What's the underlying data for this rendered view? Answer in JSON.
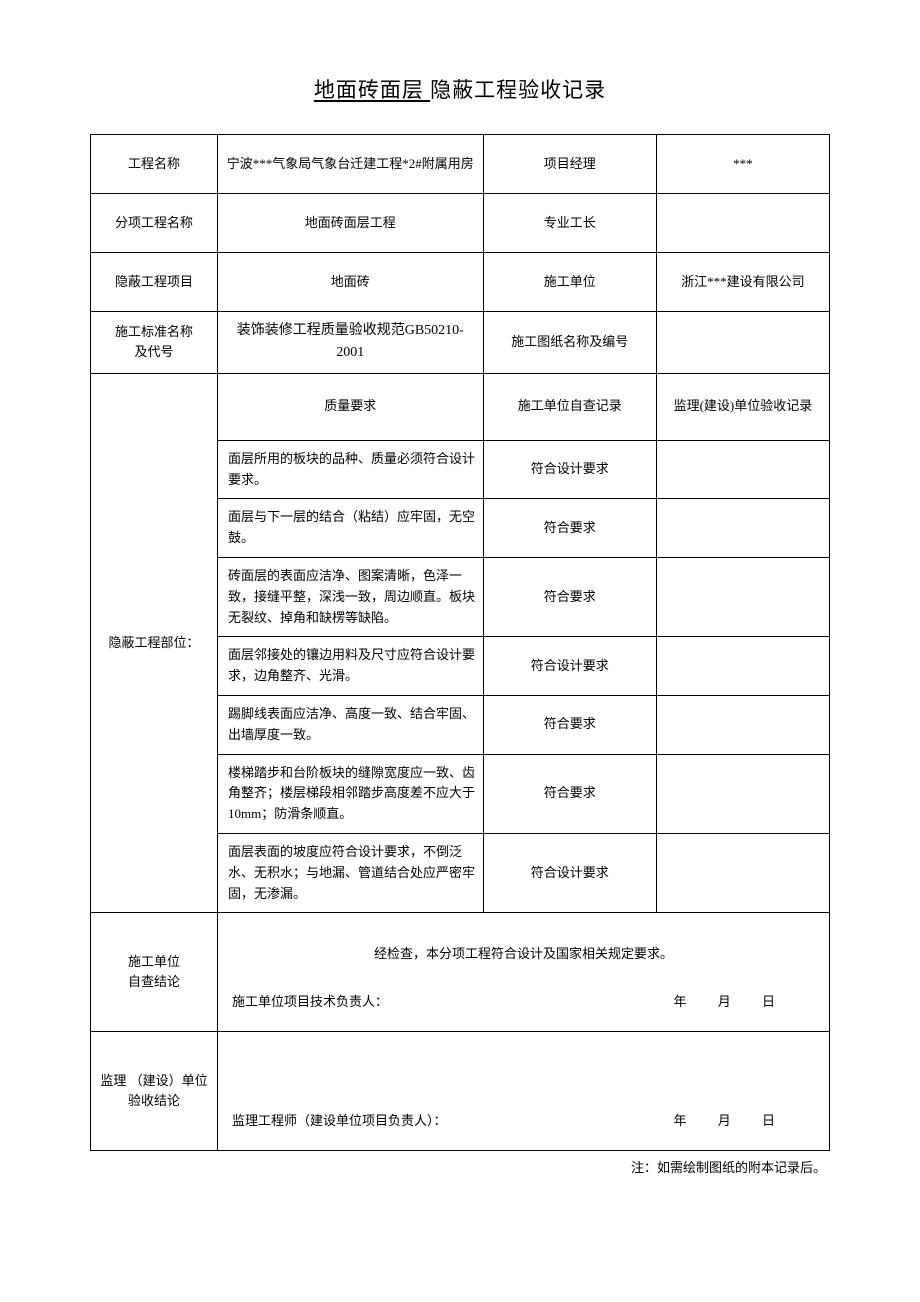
{
  "title": {
    "underlined": " 地面砖面层 ",
    "rest": "隐蔽工程验收记录"
  },
  "header": {
    "labels": {
      "project_name": "工程名称",
      "pm": "项目经理",
      "sub_project": "分项工程名称",
      "foreman": "专业工长",
      "hidden_item": "隐蔽工程项目",
      "contractor": "施工单位",
      "standard": "施工标准名称\n及代号",
      "drawing": "施工图纸名称及编号"
    },
    "values": {
      "project_name": "宁波***气象局气象台迁建工程*2#附属用房",
      "pm": "***",
      "sub_project": "地面砖面层工程",
      "foreman": "",
      "hidden_item": "地面砖",
      "contractor": "浙江***建设有限公司",
      "standard": "装饰装修工程质量验收规范GB50210-2001",
      "drawing": ""
    }
  },
  "body": {
    "section_label": "隐蔽工程部位：",
    "columns": {
      "req": "质量要求",
      "self_check": "施工单位自查记录",
      "super_check": "监理(建设)单位验收记录"
    },
    "rows": [
      {
        "req": "面层所用的板块的品种、质量必须符合设计要求。",
        "self": "符合设计要求",
        "super": ""
      },
      {
        "req": "面层与下一层的结合（粘结）应牢固，无空鼓。",
        "self": "符合要求",
        "super": ""
      },
      {
        "req": "砖面层的表面应洁净、图案清晰，色泽一致，接缝平整，深浅一致，周边顺直。板块无裂纹、掉角和缺楞等缺陷。",
        "self": "符合要求",
        "super": ""
      },
      {
        "req": "面层邻接处的镶边用料及尺寸应符合设计要求，边角整齐、光滑。",
        "self": "符合设计要求",
        "super": ""
      },
      {
        "req": "踢脚线表面应洁净、高度一致、结合牢固、出墙厚度一致。",
        "self": "符合要求",
        "super": ""
      },
      {
        "req": "楼梯踏步和台阶板块的缝隙宽度应一致、齿角整齐；楼层梯段相邻踏步高度差不应大于 10mm；防滑条顺直。",
        "self": "符合要求",
        "super": ""
      },
      {
        "req": "面层表面的坡度应符合设计要求，不倒泛水、无积水；与地漏、管道结合处应严密牢固，无渗漏。",
        "self": "符合设计要求",
        "super": ""
      }
    ]
  },
  "conclusion": {
    "self_label": "施工单位\n自查结论",
    "self_text": "经检查，本分项工程符合设计及国家相关规定要求。",
    "self_sign": "施工单位项目技术负责人：",
    "super_label": "监理 （建设）单位验收结论",
    "super_sign": "监理工程师（建设单位项目负责人）：",
    "date": "年   月   日"
  },
  "footnote": "注：如需绘制图纸的附本记录后。"
}
